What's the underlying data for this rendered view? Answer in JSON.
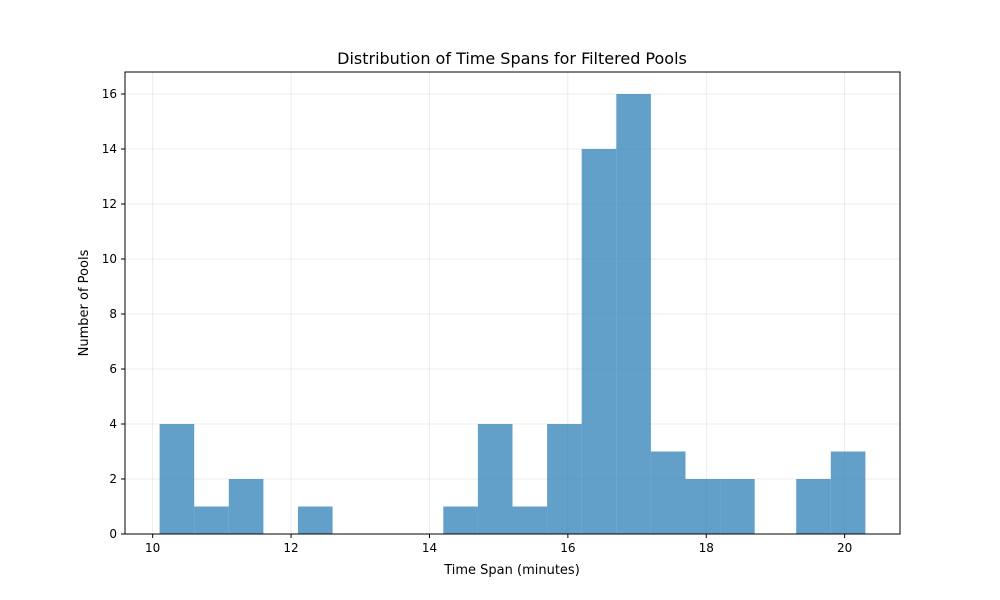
{
  "chart_data": {
    "type": "bar",
    "title": "Distribution of Time Spans for Filtered Pools",
    "xlabel": "Time Span (minutes)",
    "ylabel": "Number of Pools",
    "xlim": [
      9.6,
      20.8
    ],
    "ylim": [
      0,
      16.8
    ],
    "xticks": [
      10,
      12,
      14,
      16,
      18,
      20
    ],
    "yticks": [
      0,
      2,
      4,
      6,
      8,
      10,
      12,
      14,
      16
    ],
    "grid": true,
    "bar_color": "#1f77b4",
    "bins": [
      {
        "x0": 10.1,
        "x1": 10.6,
        "count": 4
      },
      {
        "x0": 10.6,
        "x1": 11.1,
        "count": 1
      },
      {
        "x0": 11.1,
        "x1": 11.6,
        "count": 2
      },
      {
        "x0": 11.6,
        "x1": 12.1,
        "count": 0
      },
      {
        "x0": 12.1,
        "x1": 12.6,
        "count": 1
      },
      {
        "x0": 12.6,
        "x1": 13.1,
        "count": 0
      },
      {
        "x0": 13.1,
        "x1": 13.6,
        "count": 0
      },
      {
        "x0": 13.6,
        "x1": 14.2,
        "count": 0
      },
      {
        "x0": 14.2,
        "x1": 14.7,
        "count": 1
      },
      {
        "x0": 14.7,
        "x1": 15.2,
        "count": 4
      },
      {
        "x0": 15.2,
        "x1": 15.7,
        "count": 1
      },
      {
        "x0": 15.7,
        "x1": 16.2,
        "count": 4
      },
      {
        "x0": 16.2,
        "x1": 16.7,
        "count": 14
      },
      {
        "x0": 16.7,
        "x1": 17.2,
        "count": 16
      },
      {
        "x0": 17.2,
        "x1": 17.7,
        "count": 3
      },
      {
        "x0": 17.7,
        "x1": 18.2,
        "count": 2
      },
      {
        "x0": 18.2,
        "x1": 18.7,
        "count": 2
      },
      {
        "x0": 18.7,
        "x1": 19.3,
        "count": 0
      },
      {
        "x0": 19.3,
        "x1": 19.8,
        "count": 2
      },
      {
        "x0": 19.8,
        "x1": 20.3,
        "count": 3
      }
    ]
  }
}
